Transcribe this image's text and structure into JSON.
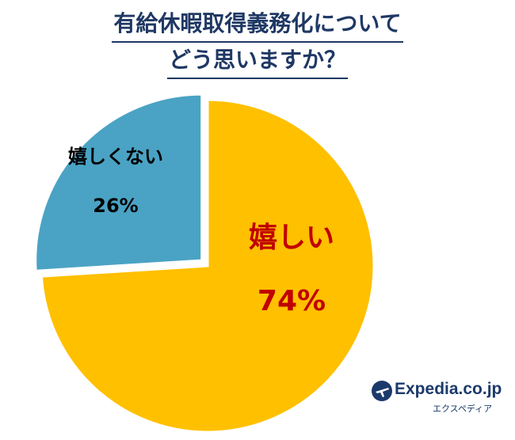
{
  "title_lines": [
    "有給休暇取得義務化について",
    "どう思いますか？"
  ],
  "chart_data": {
    "type": "pie",
    "title": "有給休暇取得義務化についてどう思いますか？",
    "slices": [
      {
        "label": "嬉しい",
        "value": 74,
        "value_label": "74%",
        "color": "#ffc000",
        "label_color": "#c00000"
      },
      {
        "label": "嬉しくない",
        "value": 26,
        "value_label": "26%",
        "color": "#4aa3c4",
        "label_color": "#000000"
      }
    ],
    "start": "12 o'clock",
    "direction": "clockwise",
    "exploded_slice": "嬉しくない"
  },
  "logo": {
    "name": "Expedia.co.jp",
    "sub": "エクスペディア",
    "icon": "airplane-globe-icon",
    "color": "#1b3a6b"
  }
}
